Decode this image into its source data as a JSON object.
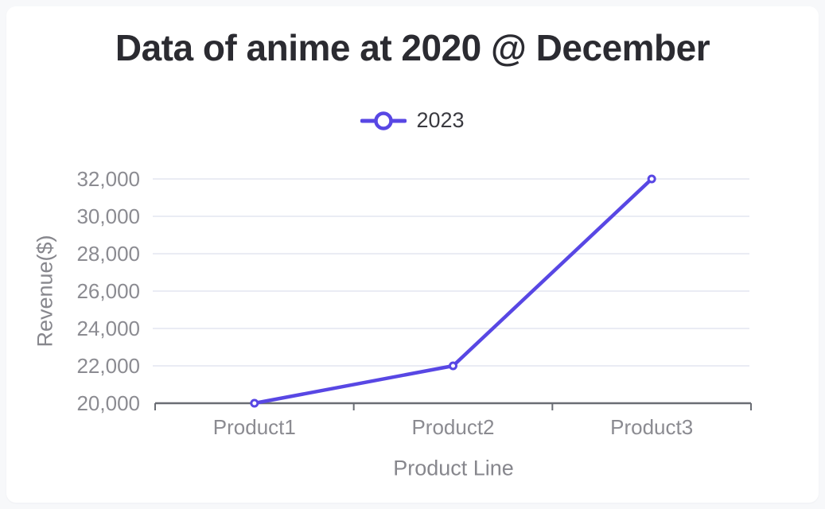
{
  "chart_data": {
    "type": "line",
    "title": "Data of anime at 2020 @ December",
    "categories": [
      "Product1",
      "Product2",
      "Product3"
    ],
    "series": [
      {
        "name": "2023",
        "color": "#5847e4",
        "values": [
          20000,
          22000,
          32000
        ]
      }
    ],
    "xlabel": "Product Line",
    "ylabel": "Revenue($)",
    "ylim": [
      20000,
      32000
    ],
    "ytick_step": 2000,
    "ytick_labels": [
      "20,000",
      "22,000",
      "24,000",
      "26,000",
      "28,000",
      "30,000",
      "32,000"
    ],
    "grid": true,
    "legend_position": "top-center",
    "marker": "hollow-circle",
    "style": {
      "page_bg": "#f7f8fa",
      "card_bg": "#ffffff",
      "title_color": "#2b2b31",
      "legend_text_color": "#3a3a40",
      "grid_color": "#e3e6f1",
      "axis_color": "#6a6d74",
      "tick_label_color": "#8b8b91",
      "axis_title_color": "#87878d"
    }
  }
}
